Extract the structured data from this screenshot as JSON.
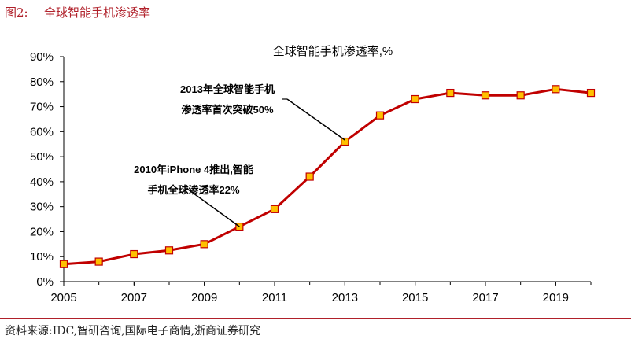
{
  "figure": {
    "label": "图2:",
    "title": "全球智能手机渗透率",
    "source": "资料来源:IDC,智研咨询,国际电子商情,浙商证券研究"
  },
  "chart_data": {
    "type": "line",
    "title": "全球智能手机渗透率,%",
    "xlabel": "",
    "ylabel": "",
    "x": [
      2005,
      2006,
      2007,
      2008,
      2009,
      2010,
      2011,
      2012,
      2013,
      2014,
      2015,
      2016,
      2017,
      2018,
      2019,
      2020
    ],
    "series": [
      {
        "values": [
          7,
          8,
          11,
          12.5,
          15,
          22,
          29,
          42,
          56,
          66.5,
          73,
          75.5,
          74.5,
          74.5,
          77,
          75.5
        ]
      }
    ],
    "xlim": [
      2005,
      2020
    ],
    "ylim": [
      0,
      90
    ],
    "x_ticks": [
      "2005",
      "2007",
      "2009",
      "2011",
      "2013",
      "2015",
      "2017",
      "2019"
    ],
    "y_ticks": [
      "0%",
      "10%",
      "20%",
      "30%",
      "40%",
      "50%",
      "60%",
      "70%",
      "80%",
      "90%"
    ],
    "grid": false,
    "line_color": "#c00000",
    "marker_fill": "#ffc000",
    "marker_stroke": "#c00000",
    "annotations": [
      {
        "lines": [
          "2013年全球智能手机",
          "渗透率首次突破50%"
        ],
        "x": 2013,
        "y": 56
      },
      {
        "lines": [
          "2010年iPhone 4推出,智能",
          "手机全球渗透率22%"
        ],
        "x": 2010,
        "y": 22
      }
    ]
  }
}
